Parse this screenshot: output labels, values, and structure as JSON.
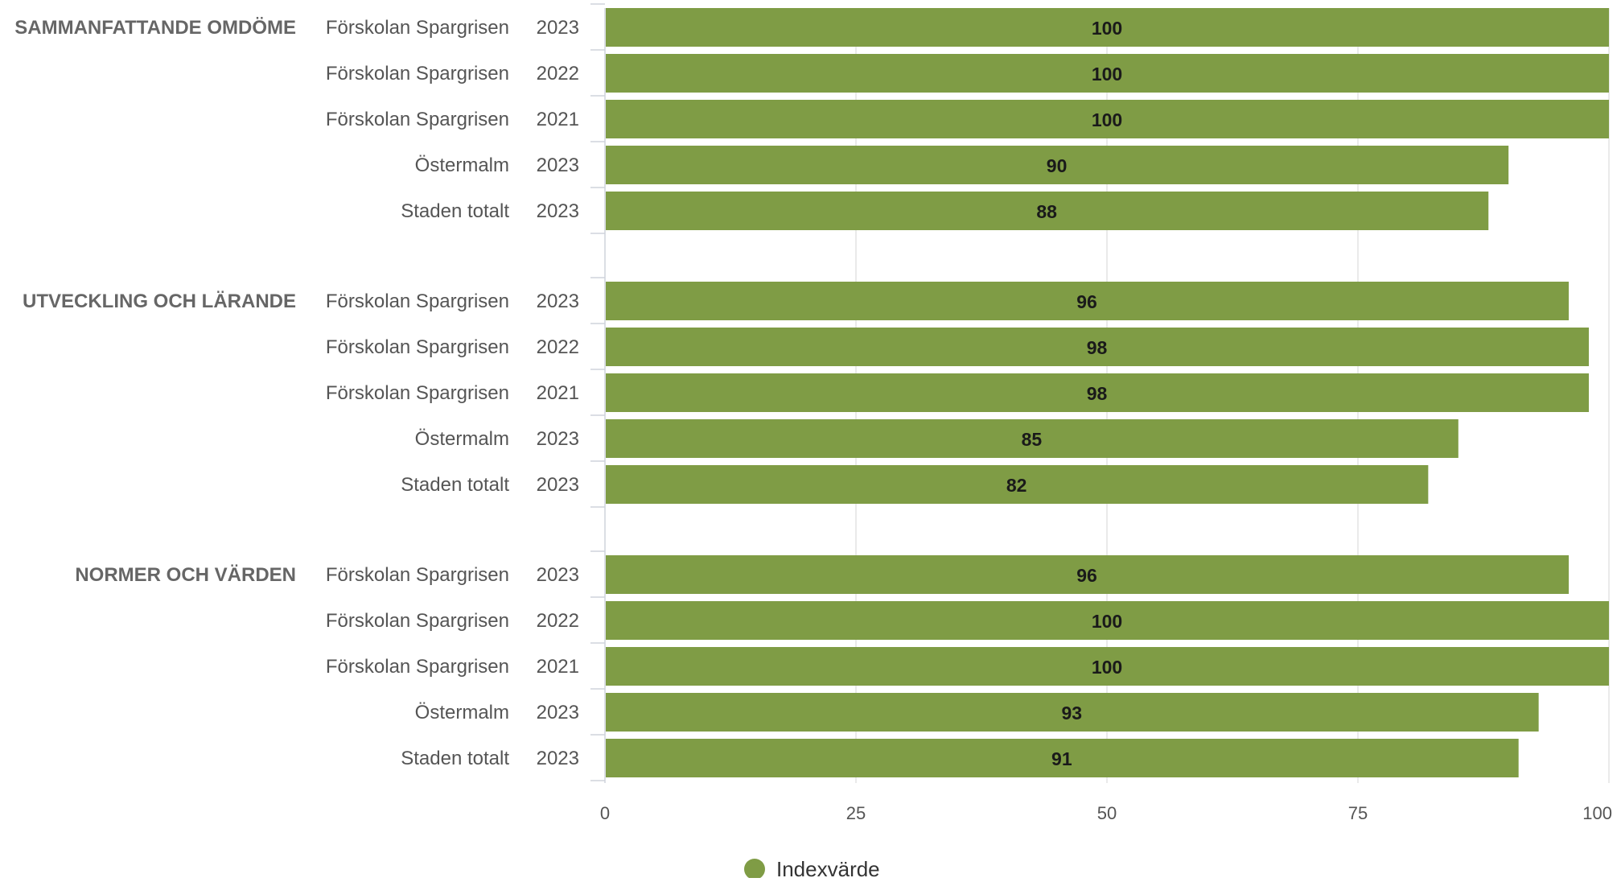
{
  "chart_data": {
    "type": "bar",
    "orientation": "horizontal",
    "xlim": [
      0,
      100
    ],
    "xticks": [
      0,
      25,
      50,
      75,
      100
    ],
    "grid": true,
    "legend": {
      "position": "bottom-center",
      "label": "Indexvärde",
      "color": "#7f9c45"
    },
    "bar_color": "#7f9c45",
    "groups": [
      {
        "name": "SAMMANFATTANDE OMDÖME",
        "rows": [
          {
            "unit": "Förskolan Spargrisen",
            "year": "2023",
            "value": 100
          },
          {
            "unit": "Förskolan Spargrisen",
            "year": "2022",
            "value": 100
          },
          {
            "unit": "Förskolan Spargrisen",
            "year": "2021",
            "value": 100
          },
          {
            "unit": "Östermalm",
            "year": "2023",
            "value": 90
          },
          {
            "unit": "Staden totalt",
            "year": "2023",
            "value": 88
          }
        ]
      },
      {
        "name": "UTVECKLING OCH LÄRANDE",
        "rows": [
          {
            "unit": "Förskolan Spargrisen",
            "year": "2023",
            "value": 96
          },
          {
            "unit": "Förskolan Spargrisen",
            "year": "2022",
            "value": 98
          },
          {
            "unit": "Förskolan Spargrisen",
            "year": "2021",
            "value": 98
          },
          {
            "unit": "Östermalm",
            "year": "2023",
            "value": 85
          },
          {
            "unit": "Staden totalt",
            "year": "2023",
            "value": 82
          }
        ]
      },
      {
        "name": "NORMER OCH VÄRDEN",
        "rows": [
          {
            "unit": "Förskolan Spargrisen",
            "year": "2023",
            "value": 96
          },
          {
            "unit": "Förskolan Spargrisen",
            "year": "2022",
            "value": 100
          },
          {
            "unit": "Förskolan Spargrisen",
            "year": "2021",
            "value": 100
          },
          {
            "unit": "Östermalm",
            "year": "2023",
            "value": 93
          },
          {
            "unit": "Staden totalt",
            "year": "2023",
            "value": 91
          }
        ]
      }
    ]
  }
}
